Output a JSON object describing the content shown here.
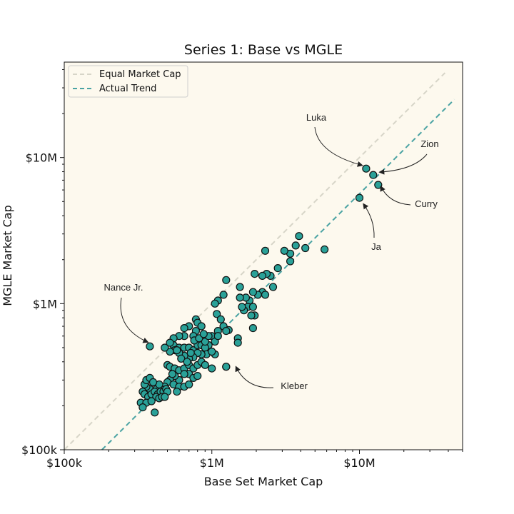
{
  "chart_data": {
    "type": "scatter",
    "title": "Series 1: Base vs MGLE",
    "xlabel": "Base Set Market Cap",
    "ylabel": "MGLE Market Cap",
    "xscale": "log",
    "yscale": "log",
    "xlim": [
      100000,
      50000000
    ],
    "ylim": [
      100000,
      45000000
    ],
    "x_ticks": [
      {
        "value": 100000,
        "label": "$100k"
      },
      {
        "value": 1000000,
        "label": "$1M"
      },
      {
        "value": 10000000,
        "label": "$10M"
      }
    ],
    "y_ticks": [
      {
        "value": 100000,
        "label": "$100k"
      },
      {
        "value": 1000000,
        "label": "$1M"
      },
      {
        "value": 10000000,
        "label": "$10M"
      }
    ],
    "grid": false,
    "background_color": "#fdf9ee",
    "point_color": "#2aa198",
    "legend_position": "top-left",
    "legend": [
      {
        "label": "Equal Market Cap",
        "color": "#d7d5c8",
        "style": "dashed"
      },
      {
        "label": "Actual Trend",
        "color": "#4aa3a3",
        "style": "dashed"
      }
    ],
    "lines": [
      {
        "name": "Equal Market Cap",
        "x": [
          100000,
          38000000
        ],
        "y": [
          100000,
          38000000
        ]
      },
      {
        "name": "Actual Trend",
        "x": [
          180000,
          44000000
        ],
        "y": [
          100000,
          25000000
        ]
      }
    ],
    "annotations": [
      {
        "text": "Luka",
        "x": 11000000,
        "y": 8500000
      },
      {
        "text": "Zion",
        "x": 13000000,
        "y": 7800000
      },
      {
        "text": "Curry",
        "x": 13500000,
        "y": 6500000
      },
      {
        "text": "Ja",
        "x": 10500000,
        "y": 5000000
      },
      {
        "text": "Nance Jr.",
        "x": 380000,
        "y": 520000
      },
      {
        "text": "Kleber",
        "x": 1400000,
        "y": 380000
      }
    ],
    "points": [
      [
        11100000,
        8400000
      ],
      [
        12400000,
        7600000
      ],
      [
        13400000,
        6500000
      ],
      [
        10000000,
        5300000
      ],
      [
        5800000,
        2350000
      ],
      [
        4300000,
        2400000
      ],
      [
        3900000,
        2900000
      ],
      [
        3700000,
        2500000
      ],
      [
        3400000,
        2200000
      ],
      [
        3100000,
        2300000
      ],
      [
        3400000,
        1950000
      ],
      [
        2300000,
        2300000
      ],
      [
        2800000,
        1750000
      ],
      [
        2600000,
        1300000
      ],
      [
        2500000,
        1550000
      ],
      [
        2350000,
        1600000
      ],
      [
        2200000,
        1550000
      ],
      [
        1950000,
        1600000
      ],
      [
        2200000,
        1200000
      ],
      [
        2300000,
        1150000
      ],
      [
        2050000,
        1150000
      ],
      [
        1900000,
        1200000
      ],
      [
        1800000,
        1050000
      ],
      [
        1700000,
        1100000
      ],
      [
        1750000,
        950000
      ],
      [
        1900000,
        950000
      ],
      [
        1650000,
        900000
      ],
      [
        1600000,
        950000
      ],
      [
        1550000,
        1100000
      ],
      [
        1550000,
        1300000
      ],
      [
        1950000,
        830000
      ],
      [
        1850000,
        830000
      ],
      [
        1900000,
        680000
      ],
      [
        1500000,
        580000
      ],
      [
        1500000,
        540000
      ],
      [
        1250000,
        1450000
      ],
      [
        1200000,
        1150000
      ],
      [
        1100000,
        1050000
      ],
      [
        1050000,
        1000000
      ],
      [
        1080000,
        850000
      ],
      [
        1150000,
        780000
      ],
      [
        1200000,
        700000
      ],
      [
        1300000,
        660000
      ],
      [
        1250000,
        650000
      ],
      [
        1100000,
        650000
      ],
      [
        1000000,
        600000
      ],
      [
        1050000,
        550000
      ],
      [
        950000,
        520000
      ],
      [
        1050000,
        450000
      ],
      [
        1000000,
        360000
      ],
      [
        1250000,
        370000
      ],
      [
        780000,
        780000
      ],
      [
        800000,
        740000
      ],
      [
        850000,
        700000
      ],
      [
        780000,
        650000
      ],
      [
        750000,
        600000
      ],
      [
        700000,
        700000
      ],
      [
        650000,
        680000
      ],
      [
        650000,
        600000
      ],
      [
        600000,
        600000
      ],
      [
        550000,
        580000
      ],
      [
        550000,
        520000
      ],
      [
        600000,
        500000
      ],
      [
        650000,
        500000
      ],
      [
        700000,
        500000
      ],
      [
        750000,
        480000
      ],
      [
        800000,
        520000
      ],
      [
        850000,
        520000
      ],
      [
        900000,
        500000
      ],
      [
        920000,
        450000
      ],
      [
        850000,
        450000
      ],
      [
        800000,
        460000
      ],
      [
        750000,
        430000
      ],
      [
        700000,
        420000
      ],
      [
        650000,
        440000
      ],
      [
        600000,
        460000
      ],
      [
        560000,
        480000
      ],
      [
        520000,
        470000
      ],
      [
        500000,
        380000
      ],
      [
        520000,
        370000
      ],
      [
        560000,
        360000
      ],
      [
        600000,
        350000
      ],
      [
        650000,
        360000
      ],
      [
        700000,
        380000
      ],
      [
        750000,
        360000
      ],
      [
        800000,
        380000
      ],
      [
        850000,
        400000
      ],
      [
        900000,
        380000
      ],
      [
        700000,
        330000
      ],
      [
        650000,
        330000
      ],
      [
        600000,
        300000
      ],
      [
        560000,
        320000
      ],
      [
        520000,
        300000
      ],
      [
        500000,
        290000
      ],
      [
        550000,
        280000
      ],
      [
        600000,
        270000
      ],
      [
        650000,
        270000
      ],
      [
        700000,
        280000
      ],
      [
        750000,
        310000
      ],
      [
        800000,
        320000
      ],
      [
        480000,
        270000
      ],
      [
        450000,
        260000
      ],
      [
        420000,
        260000
      ],
      [
        400000,
        250000
      ],
      [
        380000,
        260000
      ],
      [
        360000,
        270000
      ],
      [
        350000,
        280000
      ],
      [
        360000,
        300000
      ],
      [
        380000,
        310000
      ],
      [
        340000,
        250000
      ],
      [
        350000,
        240000
      ],
      [
        370000,
        230000
      ],
      [
        390000,
        240000
      ],
      [
        410000,
        250000
      ],
      [
        430000,
        240000
      ],
      [
        450000,
        250000
      ],
      [
        470000,
        250000
      ],
      [
        490000,
        260000
      ],
      [
        500000,
        250000
      ],
      [
        420000,
        230000
      ],
      [
        440000,
        225000
      ],
      [
        460000,
        230000
      ],
      [
        330000,
        210000
      ],
      [
        360000,
        210000
      ],
      [
        390000,
        215000
      ],
      [
        340000,
        195000
      ],
      [
        410000,
        180000
      ],
      [
        380000,
        510000
      ],
      [
        1250000,
        370000
      ],
      [
        900000,
        550000
      ],
      [
        950000,
        600000
      ],
      [
        1000000,
        470000
      ],
      [
        1100000,
        600000
      ],
      [
        480000,
        500000
      ],
      [
        520000,
        540000
      ],
      [
        580000,
        480000
      ],
      [
        620000,
        420000
      ],
      [
        680000,
        400000
      ],
      [
        720000,
        460000
      ],
      [
        760000,
        560000
      ],
      [
        820000,
        580000
      ],
      [
        880000,
        620000
      ],
      [
        540000,
        330000
      ],
      [
        580000,
        250000
      ],
      [
        480000,
        230000
      ],
      [
        440000,
        280000
      ],
      [
        400000,
        290000
      ]
    ]
  }
}
